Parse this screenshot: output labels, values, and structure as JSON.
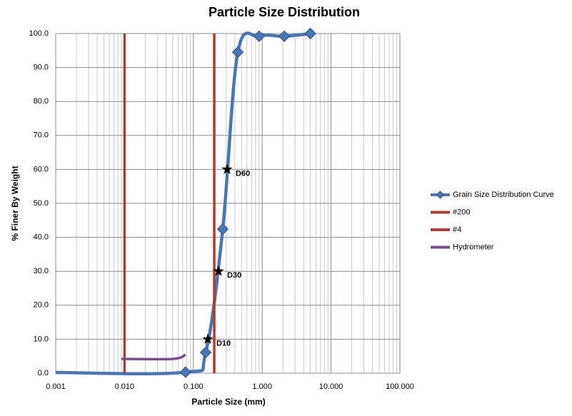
{
  "chart_data": {
    "type": "line",
    "title": "Particle Size Distribution",
    "x_label": "Particle Size (mm)",
    "y_label": "% Finer By Weight",
    "xscale": "log",
    "xlim": [
      0.001,
      100
    ],
    "xticks": [
      0.001,
      {
        "value": 0.01,
        "label": "0.010"
      },
      {
        "value": 0.1,
        "label": "0.100"
      },
      {
        "value": 1,
        "label": "1.000"
      },
      {
        "value": 10,
        "label": "10.000"
      },
      {
        "value": 100,
        "label": "100.000"
      }
    ],
    "ylim": [
      0,
      100
    ],
    "yticks": [
      {
        "value": 0,
        "label": "0.0"
      },
      {
        "value": 10,
        "label": "10.0"
      },
      {
        "value": 20,
        "label": "20.0"
      },
      {
        "value": 30,
        "label": "30.0"
      },
      {
        "value": 40,
        "label": "40.0"
      },
      {
        "value": 50,
        "label": "50.0"
      },
      {
        "value": 60,
        "label": "60.0"
      },
      {
        "value": 70,
        "label": "70.0"
      },
      {
        "value": 80,
        "label": "80.0"
      },
      {
        "value": 90,
        "label": "90.0"
      },
      {
        "value": 100,
        "label": "100.0"
      }
    ],
    "grid": true,
    "legend": "right",
    "series": [
      {
        "name": "Grain Size Distribution Curve",
        "color": "#4a76b4",
        "x": [
          0.001,
          0.077,
          0.151,
          0.267,
          0.442,
          0.904,
          2.09,
          5.0
        ],
        "values": [
          0.2,
          0.3,
          6.1,
          42.4,
          94.5,
          99.2,
          99.2,
          100
        ]
      },
      {
        "name": "#200",
        "color": "#b13a2f",
        "x": [
          0.01,
          0.01
        ],
        "values": [
          0,
          100
        ]
      },
      {
        "name": "#4",
        "color": "#b13a2f",
        "x": [
          0.201,
          0.201
        ],
        "values": [
          0,
          100
        ]
      },
      {
        "name": "Hydrometer",
        "color": "#7b4d8e",
        "x": [
          0.009,
          0.05,
          0.077
        ],
        "values": [
          4.2,
          4.2,
          5.4
        ]
      }
    ],
    "annotations": [
      {
        "text": "D60",
        "x": 0.309,
        "y": 60
      },
      {
        "text": "D30",
        "x": 0.232,
        "y": 30
      },
      {
        "text": "D10",
        "x": 0.162,
        "y": 10
      }
    ]
  }
}
